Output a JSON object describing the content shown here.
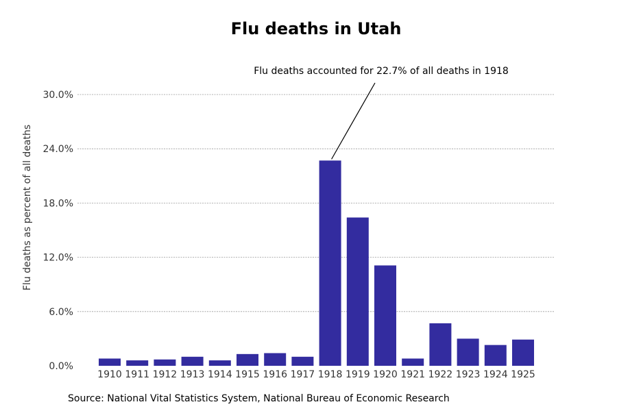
{
  "chart_data": {
    "type": "bar",
    "title": "Flu deaths in Utah",
    "xlabel": "",
    "ylabel": "Flu deaths as percent of all deaths",
    "categories": [
      "1910",
      "1911",
      "1912",
      "1913",
      "1914",
      "1915",
      "1916",
      "1917",
      "1918",
      "1919",
      "1920",
      "1921",
      "1922",
      "1923",
      "1924",
      "1925"
    ],
    "values": [
      0.8,
      0.6,
      0.7,
      1.0,
      0.6,
      1.3,
      1.4,
      1.0,
      22.7,
      16.4,
      11.1,
      0.8,
      4.7,
      3.0,
      2.3,
      2.9
    ],
    "ylim": [
      0,
      30
    ],
    "yticks": [
      "0.0%",
      "6.0%",
      "12.0%",
      "18.0%",
      "24.0%",
      "30.0%"
    ],
    "ytick_values": [
      0,
      6,
      12,
      18,
      24,
      30
    ],
    "grid": true,
    "bar_color": "#332c9f",
    "annotation": {
      "text": "Flu deaths accounted for 22.7% of all deaths in 1918",
      "category": "1918",
      "value": 22.7
    },
    "source": "Source: National Vital Statistics System, National Bureau of Economic Research"
  }
}
